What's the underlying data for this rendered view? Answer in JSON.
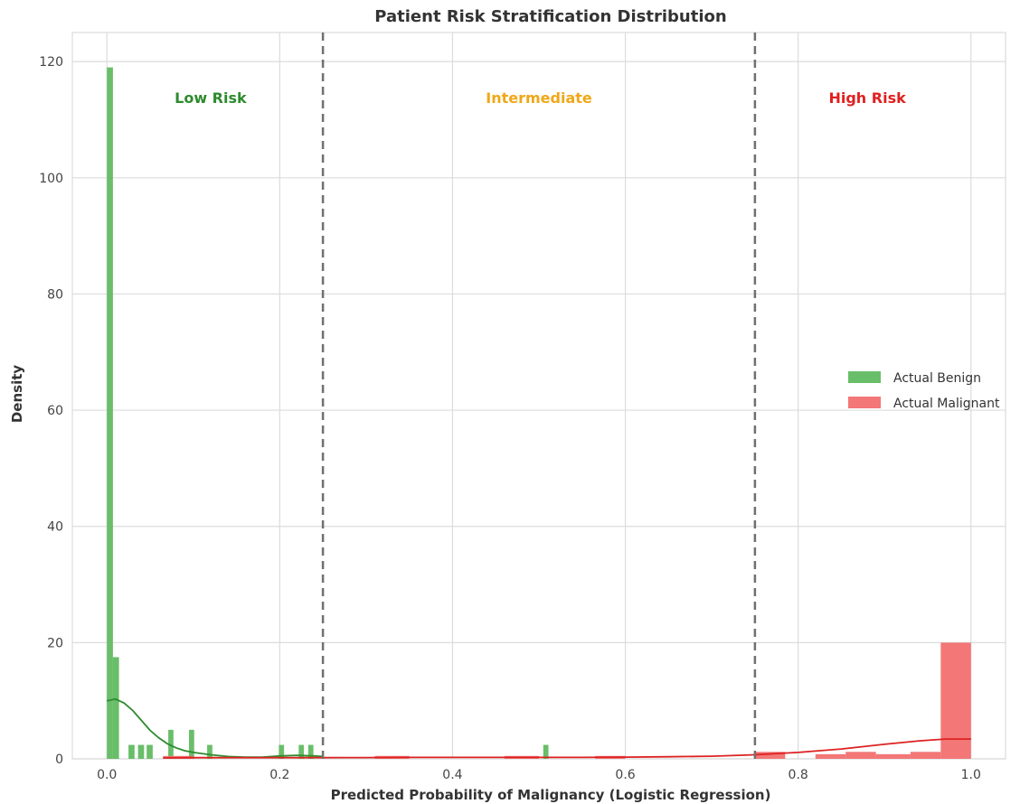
{
  "chart_data": {
    "type": "bar",
    "title": "Patient Risk Stratification Distribution",
    "xlabel": "Predicted Probability of Malignancy (Logistic Regression)",
    "ylabel": "Density",
    "xlim": [
      -0.04,
      1.04
    ],
    "ylim": [
      0,
      125
    ],
    "xticks": [
      0.0,
      0.2,
      0.4,
      0.6,
      0.8,
      1.0
    ],
    "xtick_labels": [
      "0.0",
      "0.2",
      "0.4",
      "0.6",
      "0.8",
      "1.0"
    ],
    "yticks": [
      0,
      20,
      40,
      60,
      80,
      100,
      120
    ],
    "ytick_labels": [
      "0",
      "20",
      "40",
      "60",
      "80",
      "100",
      "120"
    ],
    "grid": true,
    "legend_position": "center-right",
    "thresholds": [
      0.25,
      0.75
    ],
    "regions": [
      {
        "label": "Low Risk",
        "x": 0.12,
        "color": "#2e8b2e"
      },
      {
        "label": "Intermediate",
        "x": 0.5,
        "color": "#f0a818"
      },
      {
        "label": "High Risk",
        "x": 0.88,
        "color": "#e02020"
      }
    ],
    "series": [
      {
        "name": "Actual Benign",
        "color": "#5cb85c",
        "bars": [
          {
            "x0": 0.0,
            "x1": 0.007,
            "value": 119.0
          },
          {
            "x0": 0.007,
            "x1": 0.014,
            "value": 17.5
          },
          {
            "x0": 0.025,
            "x1": 0.032,
            "value": 2.4
          },
          {
            "x0": 0.036,
            "x1": 0.043,
            "value": 2.4
          },
          {
            "x0": 0.046,
            "x1": 0.053,
            "value": 2.4
          },
          {
            "x0": 0.071,
            "x1": 0.077,
            "value": 5.0
          },
          {
            "x0": 0.095,
            "x1": 0.101,
            "value": 5.0
          },
          {
            "x0": 0.116,
            "x1": 0.122,
            "value": 2.4
          },
          {
            "x0": 0.199,
            "x1": 0.205,
            "value": 2.4
          },
          {
            "x0": 0.222,
            "x1": 0.228,
            "value": 2.4
          },
          {
            "x0": 0.233,
            "x1": 0.239,
            "value": 2.4
          },
          {
            "x0": 0.505,
            "x1": 0.511,
            "value": 2.4
          }
        ],
        "kde": {
          "x": [
            0.0,
            0.01,
            0.02,
            0.03,
            0.04,
            0.05,
            0.06,
            0.07,
            0.08,
            0.09,
            0.1,
            0.12,
            0.14,
            0.16,
            0.18,
            0.2,
            0.22,
            0.24,
            0.25
          ],
          "y": [
            10.0,
            10.3,
            9.6,
            8.3,
            6.6,
            4.9,
            3.6,
            2.6,
            1.9,
            1.4,
            1.1,
            0.7,
            0.4,
            0.3,
            0.3,
            0.5,
            0.6,
            0.5,
            0.4
          ],
          "color": "#2e8b2e"
        }
      },
      {
        "name": "Actual Malignant",
        "color": "#f26b6b",
        "bars": [
          {
            "x0": 0.065,
            "x1": 0.1,
            "value": 0.5
          },
          {
            "x0": 0.31,
            "x1": 0.35,
            "value": 0.5
          },
          {
            "x0": 0.46,
            "x1": 0.5,
            "value": 0.5
          },
          {
            "x0": 0.565,
            "x1": 0.6,
            "value": 0.5
          },
          {
            "x0": 0.75,
            "x1": 0.785,
            "value": 1.2
          },
          {
            "x0": 0.82,
            "x1": 0.855,
            "value": 0.8
          },
          {
            "x0": 0.855,
            "x1": 0.89,
            "value": 1.2
          },
          {
            "x0": 0.89,
            "x1": 0.93,
            "value": 0.8
          },
          {
            "x0": 0.93,
            "x1": 0.965,
            "value": 1.2
          },
          {
            "x0": 0.965,
            "x1": 1.0,
            "value": 20.0
          }
        ],
        "kde": {
          "x": [
            0.065,
            0.1,
            0.15,
            0.2,
            0.25,
            0.3,
            0.35,
            0.4,
            0.45,
            0.5,
            0.55,
            0.6,
            0.65,
            0.7,
            0.75,
            0.8,
            0.85,
            0.9,
            0.94,
            0.97,
            1.0
          ],
          "y": [
            0.15,
            0.2,
            0.2,
            0.2,
            0.2,
            0.22,
            0.25,
            0.25,
            0.25,
            0.25,
            0.25,
            0.3,
            0.35,
            0.45,
            0.7,
            1.1,
            1.7,
            2.5,
            3.1,
            3.4,
            3.4
          ],
          "color": "#dd2222"
        }
      }
    ]
  }
}
